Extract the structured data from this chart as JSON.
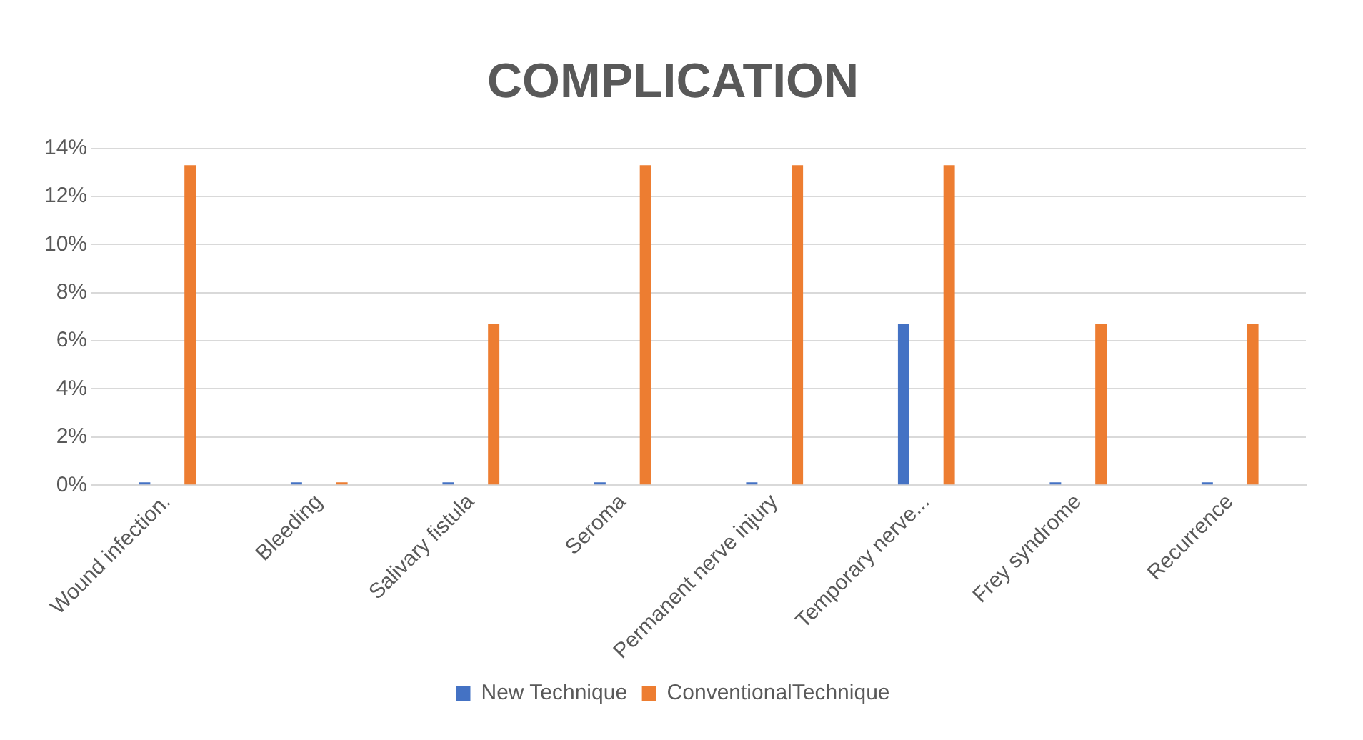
{
  "chart_data": {
    "type": "bar",
    "title": "COMPLICATION",
    "categories": [
      "Wound infection.",
      "Bleeding",
      "Salivary fistula",
      "Seroma",
      "Permanent nerve injury",
      "Temporary nerve...",
      "Frey syndrome",
      "Recurrence"
    ],
    "series": [
      {
        "name": "New Technique",
        "color": "#4472c4",
        "values": [
          0,
          0,
          0,
          0,
          0,
          6.7,
          0,
          0
        ]
      },
      {
        "name": "ConventionalTechnique",
        "color": "#ed7d31",
        "values": [
          13.3,
          0,
          6.7,
          13.3,
          13.3,
          13.3,
          6.7,
          6.7
        ]
      }
    ],
    "ylim": [
      0,
      14
    ],
    "yticks": [
      {
        "value": 0,
        "label": "0%"
      },
      {
        "value": 2,
        "label": "2%"
      },
      {
        "value": 4,
        "label": "4%"
      },
      {
        "value": 6,
        "label": "6%"
      },
      {
        "value": 8,
        "label": "8%"
      },
      {
        "value": 10,
        "label": "10%"
      },
      {
        "value": 12,
        "label": "12%"
      },
      {
        "value": 14,
        "label": "14%"
      }
    ],
    "grid": "y",
    "legend": "bottom"
  }
}
